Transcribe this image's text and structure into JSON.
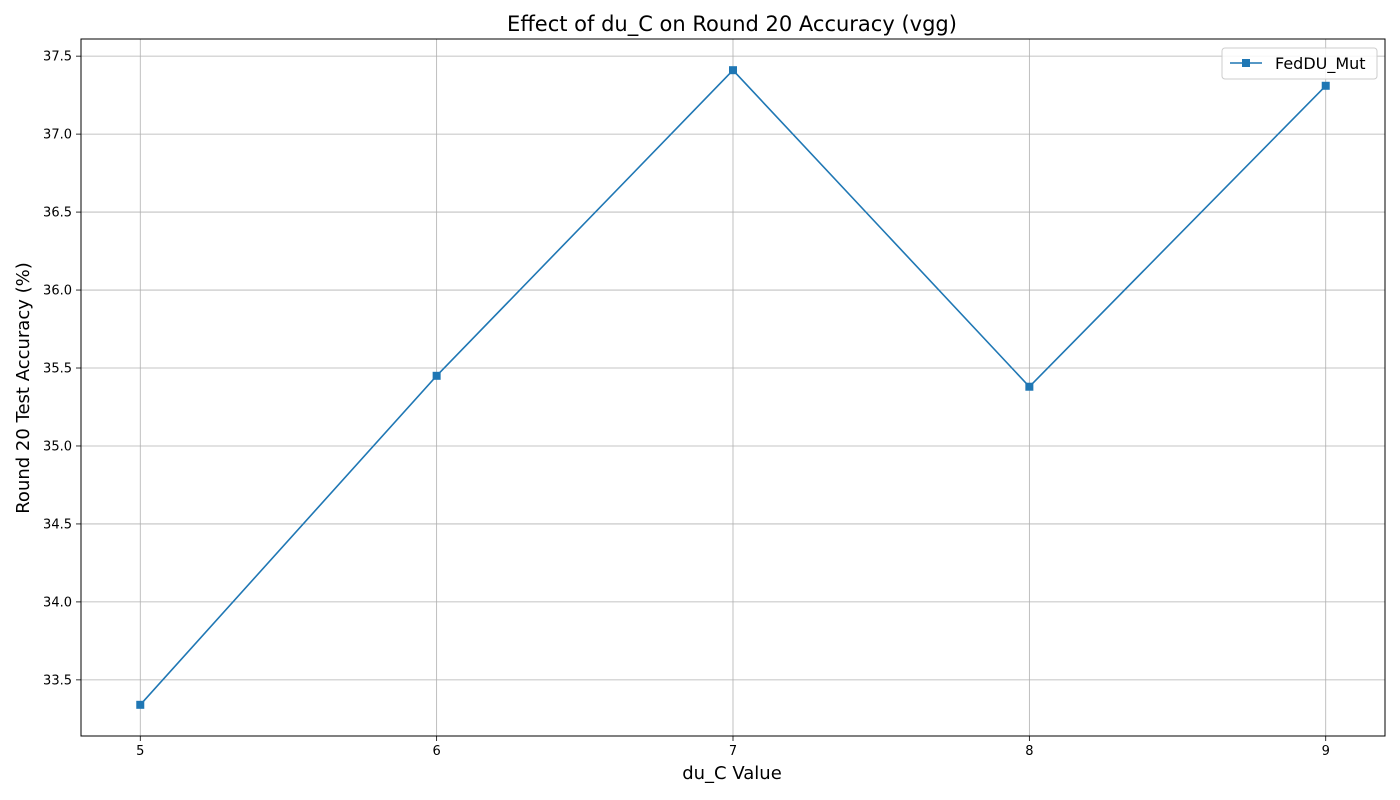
{
  "chart_data": {
    "type": "line",
    "title": "Effect of du_C on Round 20 Accuracy (vgg)",
    "xlabel": "du_C Value",
    "ylabel": "Round 20 Test Accuracy (%)",
    "x": [
      5,
      6,
      7,
      8,
      9
    ],
    "x_ticks": [
      "5",
      "6",
      "7",
      "8",
      "9"
    ],
    "y_ticks": [
      "33.5",
      "34.0",
      "34.5",
      "35.0",
      "35.5",
      "36.0",
      "36.5",
      "37.0",
      "37.5"
    ],
    "xlim": [
      4.8,
      9.2
    ],
    "ylim": [
      33.14,
      37.61
    ],
    "grid": true,
    "legend_position": "top-right",
    "series": [
      {
        "name": "FedDU_Mut",
        "values": [
          33.34,
          35.45,
          37.41,
          35.38,
          37.31
        ],
        "color": "#1f77b4",
        "marker": "square"
      }
    ]
  }
}
